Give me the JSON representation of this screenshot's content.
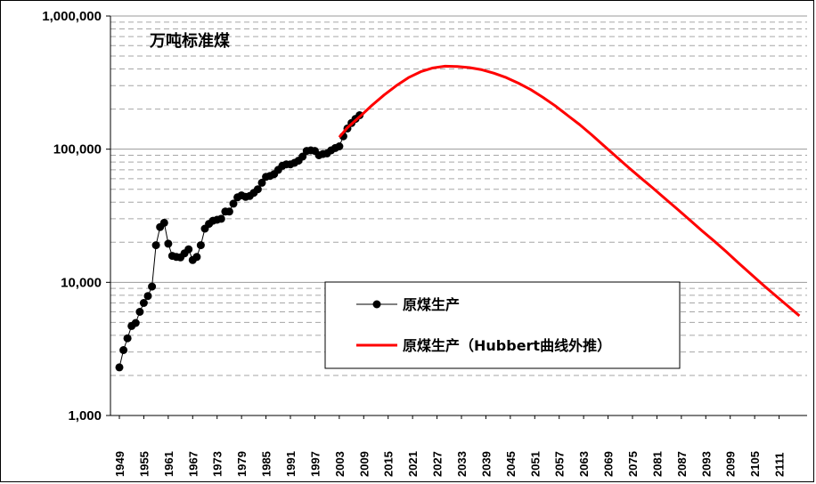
{
  "chart_data": {
    "type": "line",
    "y_scale": "log",
    "ylim": [
      1000,
      1000000
    ],
    "y_ticks": [
      {
        "value": 1000,
        "label": "1,000"
      },
      {
        "value": 10000,
        "label": "10,000"
      },
      {
        "value": 100000,
        "label": "100,000"
      },
      {
        "value": 1000000,
        "label": "1,000,000"
      }
    ],
    "xlim": [
      1949,
      2117
    ],
    "x_tick_labels": [
      "1949",
      "1955",
      "1961",
      "1967",
      "1973",
      "1979",
      "1985",
      "1991",
      "1997",
      "2003",
      "2009",
      "2015",
      "2021",
      "2027",
      "2033",
      "2039",
      "2045",
      "2051",
      "2057",
      "2063",
      "2069",
      "2075",
      "2081",
      "2087",
      "2093",
      "2099",
      "2105",
      "2111"
    ],
    "unit_label": "万吨标准煤",
    "grid": {
      "major": "solid",
      "minor": "dashed"
    },
    "legend_position": "center",
    "colors": {
      "actual": "#000000",
      "hubbert": "#ff0000"
    },
    "series": [
      {
        "name": "原煤生产",
        "marker": "circle",
        "x": [
          1949,
          1950,
          1951,
          1952,
          1953,
          1954,
          1955,
          1956,
          1957,
          1958,
          1959,
          1960,
          1961,
          1962,
          1963,
          1964,
          1965,
          1966,
          1967,
          1968,
          1969,
          1970,
          1971,
          1972,
          1973,
          1974,
          1975,
          1976,
          1977,
          1978,
          1979,
          1980,
          1981,
          1982,
          1983,
          1984,
          1985,
          1986,
          1987,
          1988,
          1989,
          1990,
          1991,
          1992,
          1993,
          1994,
          1995,
          1996,
          1997,
          1998,
          1999,
          2000,
          2001,
          2002,
          2003,
          2004,
          2005,
          2006,
          2007,
          2008
        ],
        "values": [
          2300,
          3100,
          3800,
          4700,
          4950,
          6000,
          7000,
          7900,
          9300,
          19000,
          26000,
          28000,
          19500,
          15800,
          15500,
          15400,
          16500,
          17700,
          14700,
          15500,
          19000,
          25300,
          27500,
          29000,
          29500,
          30000,
          34000,
          34000,
          39000,
          43500,
          45000,
          43800,
          44500,
          47000,
          50000,
          56000,
          62000,
          63000,
          65000,
          70000,
          75000,
          77000,
          77000,
          79000,
          82000,
          88000,
          97000,
          98000,
          97000,
          90000,
          92000,
          93000,
          98000,
          102000,
          105000,
          125000,
          143000,
          157000,
          169000,
          180000
        ]
      },
      {
        "name": "原煤生产（Hubbert曲线外推）",
        "marker": "none",
        "x": [
          2003,
          2005,
          2008,
          2011,
          2014,
          2017,
          2020,
          2023,
          2026,
          2029,
          2032,
          2035,
          2038,
          2041,
          2044,
          2047,
          2050,
          2053,
          2056,
          2059,
          2062,
          2065,
          2068,
          2071,
          2074,
          2077,
          2080,
          2083,
          2086,
          2089,
          2092,
          2095,
          2098,
          2101,
          2104,
          2107,
          2110,
          2113,
          2116
        ],
        "values": [
          123000,
          145000,
          175000,
          213000,
          255000,
          300000,
          345000,
          382000,
          408000,
          420000,
          418000,
          410000,
          395000,
          372000,
          345000,
          313000,
          280000,
          245000,
          212000,
          180000,
          153000,
          128000,
          106000,
          88000,
          73000,
          61000,
          51000,
          42500,
          35500,
          29500,
          24500,
          20500,
          17000,
          14000,
          11600,
          9600,
          8000,
          6700,
          5600
        ]
      }
    ]
  }
}
